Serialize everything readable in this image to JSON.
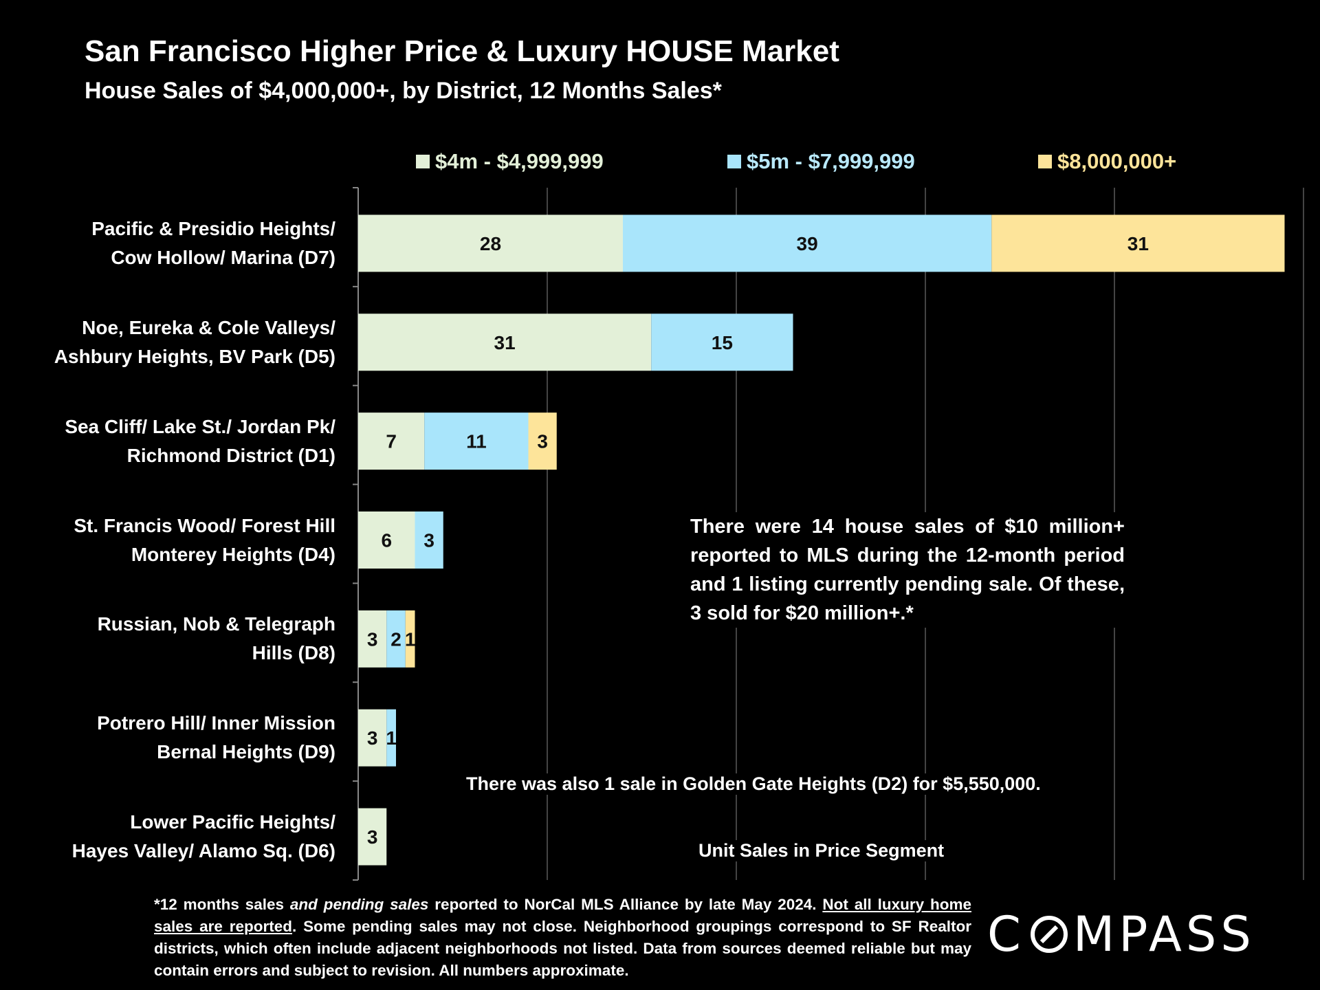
{
  "header": {
    "title": "San Francisco Higher Price & Luxury HOUSE Market",
    "subtitle": "House Sales of $4,000,000+, by District, 12 Months Sales*"
  },
  "chart_data": {
    "type": "bar",
    "orientation": "horizontal",
    "stacked": true,
    "title": "San Francisco Higher Price & Luxury HOUSE Market",
    "subtitle": "House Sales of $4,000,000+, by District, 12 Months Sales*",
    "xlabel": "Unit Sales in Price Segment",
    "ylabel": "",
    "xlim": [
      0,
      100
    ],
    "grid": true,
    "legend_position": "top",
    "categories": [
      [
        "Pacific & Presidio Heights/",
        "Cow Hollow/ Marina (D7)"
      ],
      [
        "Noe, Eureka & Cole Valleys/",
        "Ashbury Heights, BV Park (D5)"
      ],
      [
        "Sea Cliff/ Lake St./ Jordan Pk/",
        "Richmond District (D1)"
      ],
      [
        "St. Francis Wood/ Forest Hill",
        "Monterey Heights (D4)"
      ],
      [
        "Russian, Nob & Telegraph",
        "Hills (D8)"
      ],
      [
        "Potrero Hill/ Inner Mission",
        "Bernal Heights (D9)"
      ],
      [
        "Lower Pacific Heights/",
        "Hayes Valley/ Alamo Sq. (D6)"
      ]
    ],
    "series": [
      {
        "name": "$4m - $4,999,999",
        "color": "#e3f0d8",
        "text_color": "#e3f0d8",
        "values": [
          28,
          31,
          7,
          6,
          3,
          3,
          3
        ]
      },
      {
        "name": "$5m - $7,999,999",
        "color": "#a9e5fb",
        "text_color": "#b9e9fb",
        "values": [
          39,
          15,
          11,
          3,
          2,
          1,
          0
        ]
      },
      {
        "name": "$8,000,000+",
        "color": "#fde49a",
        "text_color": "#fde49a",
        "values": [
          31,
          0,
          3,
          0,
          1,
          0,
          0
        ]
      }
    ],
    "annotations": [
      "There were 14 house sales of $10 million+ reported to MLS during the 12-month period and 1 listing currently pending sale. Of these, 3 sold for $20 million+.*",
      "There was also 1 sale in Golden Gate Heights (D2) for $5,550,000."
    ]
  },
  "notes": {
    "main": "There were 14 house sales of $10 million+ reported to MLS during the 12-month period and 1 listing currently pending sale. Of these, 3 sold for $20 million+.*",
    "golden_gate": "There was also 1 sale in Golden Gate Heights (D2) for $5,550,000."
  },
  "footnote": {
    "part1": "*12 months sales ",
    "part2_italic": "and pending sales",
    "part3": " reported to NorCal MLS Alliance by late May 2024. ",
    "part4_underline": "Not all luxury home sales are reported",
    "part5": ". Some pending sales may not close. Neighborhood groupings correspond to SF Realtor districts, which often include adjacent neighborhoods not listed. Data from sources deemed reliable but may contain errors and subject to revision. All numbers approximate."
  },
  "logo": {
    "text_before": "C",
    "text_after": "MPASS"
  },
  "colors": {
    "background": "#000000",
    "text": "#ffffff",
    "bar_label": "#111111",
    "grid": "#444444"
  }
}
